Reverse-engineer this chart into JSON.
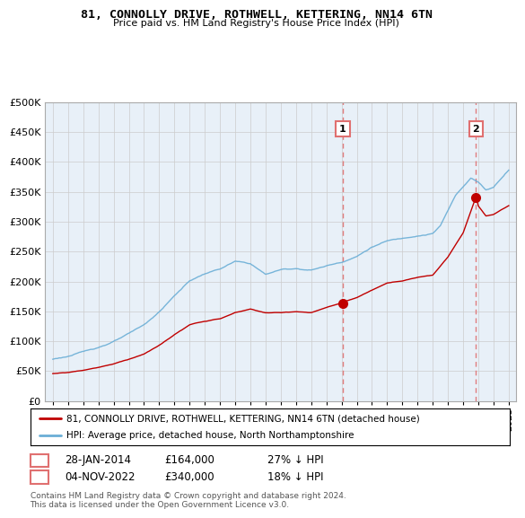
{
  "title": "81, CONNOLLY DRIVE, ROTHWELL, KETTERING, NN14 6TN",
  "subtitle": "Price paid vs. HM Land Registry's House Price Index (HPI)",
  "legend_line1": "81, CONNOLLY DRIVE, ROTHWELL, KETTERING, NN14 6TN (detached house)",
  "legend_line2": "HPI: Average price, detached house, North Northamptonshire",
  "footnote": "Contains HM Land Registry data © Crown copyright and database right 2024.\nThis data is licensed under the Open Government Licence v3.0.",
  "transaction1_date": "28-JAN-2014",
  "transaction1_price": "£164,000",
  "transaction1_hpi": "27% ↓ HPI",
  "transaction1_x": 2014.07,
  "transaction1_y": 164000,
  "transaction2_date": "04-NOV-2022",
  "transaction2_price": "£340,000",
  "transaction2_hpi": "18% ↓ HPI",
  "transaction2_x": 2022.84,
  "transaction2_y": 340000,
  "vline1_x": 2014.07,
  "vline2_x": 2022.84,
  "hpi_color": "#6aaed6",
  "price_color": "#c00000",
  "marker_color": "#c00000",
  "vline_color": "#e07070",
  "grid_color": "#cccccc",
  "chart_bg": "#e8f0f8",
  "bg_color": "#ffffff",
  "ylim": [
    0,
    500000
  ],
  "yticks": [
    0,
    50000,
    100000,
    150000,
    200000,
    250000,
    300000,
    350000,
    400000,
    450000,
    500000
  ],
  "xlim": [
    1994.5,
    2025.5
  ]
}
